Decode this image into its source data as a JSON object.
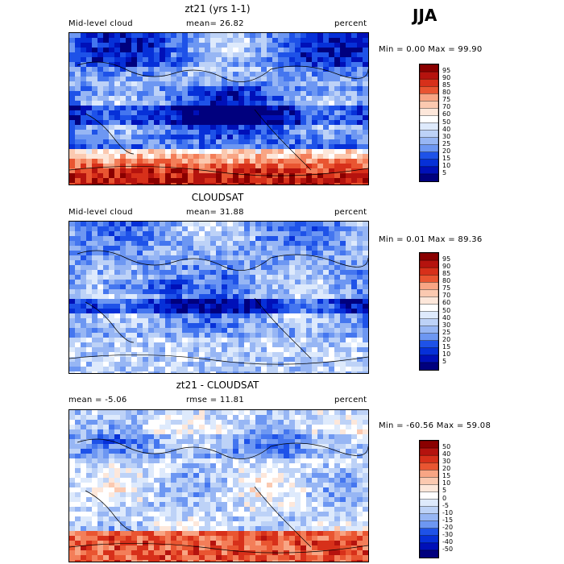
{
  "season": "JJA",
  "colors": {
    "abs_levels": [
      "#00007e",
      "#0010b8",
      "#0630d8",
      "#1e52e8",
      "#4476ef",
      "#6d97f2",
      "#97b6f4",
      "#bdd2f7",
      "#deeafc",
      "#ffffff",
      "#fde7da",
      "#fbc9b0",
      "#f8a584",
      "#f37e59",
      "#e95531",
      "#d7301a",
      "#b5130e",
      "#8a0000"
    ],
    "diff_levels": [
      "#00007e",
      "#0010b8",
      "#0630d8",
      "#1e52e8",
      "#4476ef",
      "#6d97f2",
      "#97b6f4",
      "#bdd2f7",
      "#deeafc",
      "#ffffff",
      "#fde7da",
      "#fbc9b0",
      "#f8a584",
      "#f37e59",
      "#e95531",
      "#d7301a",
      "#b5130e",
      "#8a0000"
    ]
  },
  "chart_data": [
    {
      "type": "heatmap",
      "title": "zt21 (yrs 1-1)",
      "left_label": "Mid-level cloud",
      "mean_text": "mean=  26.82",
      "units": "percent",
      "minmax": "Min =   0.00 Max =  99.90",
      "colorbar": {
        "ticks": [
          "95",
          "90",
          "85",
          "80",
          "75",
          "70",
          "60",
          "50",
          "40",
          "30",
          "25",
          "20",
          "15",
          "10",
          "5"
        ]
      },
      "seed": 11,
      "field": "model"
    },
    {
      "type": "heatmap",
      "title": "CLOUDSAT",
      "left_label": "Mid-level cloud",
      "mean_text": "mean=  31.88",
      "units": "percent",
      "minmax": "Min =   0.01 Max =  89.36",
      "colorbar": {
        "ticks": [
          "95",
          "90",
          "85",
          "80",
          "75",
          "70",
          "60",
          "50",
          "40",
          "30",
          "25",
          "20",
          "15",
          "10",
          "5"
        ]
      },
      "seed": 27,
      "field": "obs"
    },
    {
      "type": "heatmap",
      "title": "zt21 - CLOUDSAT",
      "left_label": "mean =   -5.06",
      "mean_text": "rmse =   11.81",
      "units": "percent",
      "minmax": "Min = -60.56 Max =  59.08",
      "colorbar": {
        "ticks": [
          "50",
          "40",
          "30",
          "20",
          "15",
          "10",
          "5",
          "0",
          "-5",
          "-10",
          "-15",
          "-20",
          "-30",
          "-40",
          "-50"
        ]
      },
      "seed": 53,
      "field": "diff"
    }
  ]
}
